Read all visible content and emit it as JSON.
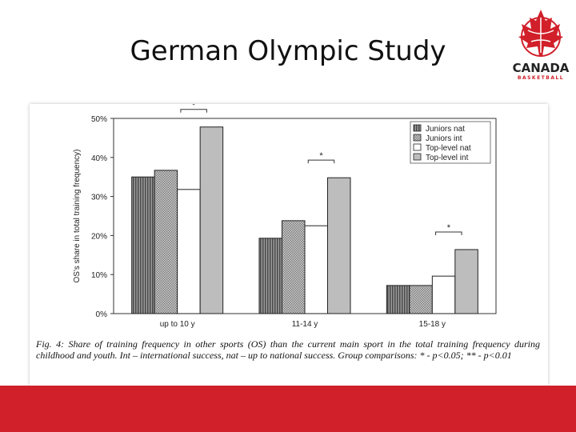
{
  "slide": {
    "title": "German Olympic Study",
    "logo_word": "CANADA",
    "logo_sub": "BASKETBALL",
    "caption": "Fig. 4: Share of training frequency in other sports (OS) than the current main sport in the total training frequency during childhood and youth. Int – international success, nat – up to national success. Group comparisons: * - p<0.05; ** - p<0.01"
  },
  "colors": {
    "brand_red": "#d1202a",
    "juniors_nat": "#6e6e6e",
    "juniors_int": "#a8a8a8",
    "toplevel_nat": "#ffffff",
    "toplevel_int": "#bdbdbd"
  },
  "chart_data": {
    "type": "bar",
    "title": "",
    "xlabel": "",
    "ylabel": "OS's share in total training frequency)",
    "ylim": [
      0,
      50
    ],
    "yticks": [
      "0%",
      "10%",
      "20%",
      "30%",
      "40%",
      "50%"
    ],
    "categories": [
      "up to 10 y",
      "11-14 y",
      "15-18 y"
    ],
    "legend_position": "top-right",
    "series": [
      {
        "name": "Juniors nat",
        "values": [
          35,
          19.3,
          7.2
        ]
      },
      {
        "name": "Juniors int",
        "values": [
          36.7,
          23.8,
          7.2
        ]
      },
      {
        "name": "Top-level nat",
        "values": [
          31.8,
          22.5,
          9.6
        ]
      },
      {
        "name": "Top-level int",
        "values": [
          47.8,
          34.8,
          16.4
        ]
      }
    ],
    "annotations": [
      {
        "category": 0,
        "text": "*"
      },
      {
        "category": 1,
        "text": "*"
      },
      {
        "category": 2,
        "text": "*"
      }
    ]
  }
}
